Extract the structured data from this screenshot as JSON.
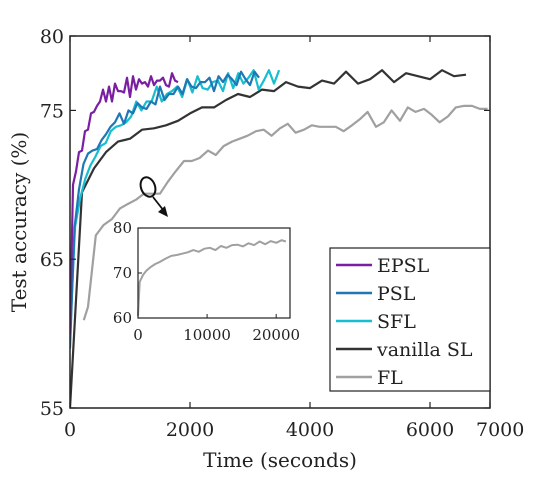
{
  "chart_data": {
    "type": "line",
    "xlabel": "Time (seconds)",
    "ylabel": "Test accuracy (%)",
    "xlim": [
      0,
      7000
    ],
    "ylim": [
      55,
      80
    ],
    "xticks": [
      {
        "value": 0,
        "label": "0"
      },
      {
        "value": 2000,
        "label": "2000"
      },
      {
        "value": 4000,
        "label": "4000"
      },
      {
        "value": 6000,
        "label": "6000"
      },
      {
        "value": 7000,
        "label": "7000"
      }
    ],
    "yticks": [
      {
        "value": 55,
        "label": "55"
      },
      {
        "value": 65,
        "label": "65"
      },
      {
        "value": 75,
        "label": "75"
      },
      {
        "value": 80,
        "label": "80"
      }
    ],
    "grid": false,
    "legend_position": "bottom-right",
    "series": [
      {
        "name": "EPSL",
        "color": "#7b1fa2",
        "x": [
          0,
          50,
          100,
          150,
          200,
          250,
          300,
          350,
          400,
          450,
          500,
          550,
          600,
          650,
          700,
          750,
          800,
          850,
          900,
          950,
          1000,
          1050,
          1100,
          1150,
          1200,
          1250,
          1300,
          1350,
          1400,
          1450,
          1500,
          1550,
          1600,
          1650,
          1700,
          1750,
          1800
        ],
        "y": [
          60,
          70.0,
          70.9,
          72.2,
          72.3,
          73.6,
          73.7,
          74.8,
          74.9,
          75.3,
          75.6,
          76.4,
          75.6,
          76.6,
          75.6,
          76.8,
          76.3,
          76.3,
          76.2,
          77.2,
          75.9,
          77.3,
          76.4,
          77.1,
          76.8,
          76.9,
          76.6,
          77.3,
          76.7,
          77.0,
          77.0,
          77.2,
          76.7,
          76.6,
          77.5,
          77.0,
          76.9
        ]
      },
      {
        "name": "PSL",
        "color": "#1f77b4",
        "x": [
          0,
          75,
          150,
          225,
          300,
          375,
          450,
          525,
          600,
          675,
          750,
          825,
          900,
          975,
          1050,
          1125,
          1200,
          1275,
          1350,
          1425,
          1500,
          1575,
          1650,
          1725,
          1800,
          1875,
          1950,
          2025,
          2100,
          2175,
          2250,
          2325,
          2400,
          2475,
          2550,
          2625,
          2700,
          2775,
          2850,
          2925,
          3000,
          3075,
          3150
        ],
        "y": [
          59,
          67.1,
          69.7,
          71.4,
          72.1,
          72.3,
          72.4,
          73.0,
          73.4,
          73.9,
          74.2,
          74.8,
          74.1,
          75.0,
          74.8,
          75.5,
          75.2,
          75.1,
          75.6,
          75.4,
          76.6,
          75.7,
          76.1,
          76.1,
          76.6,
          76.1,
          77.1,
          76.6,
          76.5,
          76.9,
          76.9,
          77.2,
          76.3,
          77.3,
          76.9,
          77.4,
          77.1,
          76.7,
          77.6,
          77.1,
          76.7,
          77.6,
          77.2
        ]
      },
      {
        "name": "SFL",
        "color": "#17becf",
        "x": [
          0,
          85,
          170,
          255,
          340,
          425,
          510,
          595,
          680,
          765,
          850,
          935,
          1020,
          1105,
          1190,
          1275,
          1360,
          1445,
          1530,
          1615,
          1700,
          1785,
          1870,
          1955,
          2040,
          2125,
          2210,
          2295,
          2380,
          2465,
          2550,
          2635,
          2720,
          2805,
          2890,
          2975,
          3060,
          3145,
          3230,
          3315,
          3400,
          3485
        ],
        "y": [
          60,
          67.2,
          69.1,
          70.4,
          71.3,
          71.9,
          72.6,
          72.8,
          73.6,
          73.9,
          74.0,
          74.2,
          74.6,
          75.6,
          75.0,
          75.6,
          75.6,
          76.6,
          75.6,
          76.1,
          76.3,
          76.6,
          75.9,
          77.1,
          76.2,
          77.3,
          76.5,
          76.4,
          76.9,
          77.0,
          76.3,
          77.5,
          76.5,
          77.5,
          76.8,
          77.2,
          77.7,
          76.4,
          77.0,
          77.7,
          76.8,
          77.7
        ]
      },
      {
        "name": "vanilla SL",
        "color": "#333333",
        "x": [
          0,
          200,
          400,
          600,
          800,
          1000,
          1200,
          1400,
          1600,
          1800,
          2000,
          2200,
          2400,
          2600,
          2800,
          3000,
          3200,
          3400,
          3600,
          3800,
          4000,
          4200,
          4400,
          4600,
          4800,
          5000,
          5200,
          5400,
          5600,
          5800,
          6000,
          6200,
          6400,
          6600
        ],
        "y": [
          55,
          69.5,
          71.1,
          72.2,
          72.9,
          73.1,
          73.7,
          73.8,
          74.0,
          74.3,
          74.8,
          75.2,
          75.2,
          75.7,
          76.1,
          75.9,
          76.4,
          76.3,
          76.9,
          76.6,
          76.5,
          77.0,
          76.8,
          77.6,
          76.8,
          77.1,
          77.7,
          76.9,
          77.5,
          77.3,
          77.1,
          77.7,
          77.3,
          77.4
        ]
      },
      {
        "name": "FL",
        "color": "#a0a0a0",
        "x": [
          230,
          300,
          430,
          560,
          700,
          830,
          960,
          1100,
          1230,
          1360,
          1500,
          1630,
          1760,
          1900,
          2030,
          2160,
          2300,
          2430,
          2560,
          2700,
          2830,
          2960,
          3100,
          3230,
          3360,
          3500,
          3630,
          3760,
          3900,
          4030,
          4160,
          4300,
          4430,
          4560,
          4700,
          4830,
          4960,
          5100,
          5230,
          5360,
          5500,
          5630,
          5760,
          5900,
          6030,
          6160,
          6300,
          6430,
          6560,
          6700,
          6830,
          6960
        ],
        "y": [
          60.9,
          61.8,
          66.6,
          67.3,
          67.7,
          68.4,
          68.7,
          69.0,
          69.4,
          69.4,
          69.4,
          70.2,
          70.9,
          71.6,
          71.6,
          71.8,
          72.3,
          72.0,
          72.6,
          72.9,
          73.1,
          73.3,
          73.6,
          73.7,
          73.3,
          73.8,
          74.1,
          73.5,
          73.7,
          74.0,
          73.9,
          73.9,
          73.9,
          73.6,
          74.0,
          74.4,
          74.9,
          73.9,
          74.2,
          75.0,
          74.3,
          75.2,
          74.9,
          75.1,
          74.7,
          74.2,
          74.6,
          75.2,
          75.3,
          75.3,
          75.1,
          75.1
        ]
      }
    ],
    "inset": {
      "xlim": [
        0,
        22000
      ],
      "ylim": [
        60,
        80
      ],
      "xticks": [
        {
          "value": 0,
          "label": "0"
        },
        {
          "value": 10000,
          "label": "10000"
        },
        {
          "value": 20000,
          "label": "20000"
        }
      ],
      "yticks": [
        {
          "value": 60,
          "label": "60"
        },
        {
          "value": 70,
          "label": "70"
        },
        {
          "value": 80,
          "label": "80"
        }
      ],
      "series": {
        "color": "#a0a0a0",
        "x": [
          0,
          250,
          700,
          1200,
          1800,
          2500,
          3200,
          4000,
          4800,
          5600,
          6400,
          7200,
          8000,
          8800,
          9600,
          10400,
          11200,
          12000,
          12800,
          13600,
          14400,
          15200,
          16000,
          16800,
          17600,
          18400,
          19200,
          20000,
          20800,
          21400
        ],
        "y": [
          60.5,
          68.0,
          69.5,
          70.5,
          71.3,
          72.0,
          72.5,
          73.2,
          73.8,
          74.0,
          74.3,
          74.6,
          75.1,
          74.7,
          75.4,
          75.6,
          75.1,
          76.0,
          75.6,
          76.2,
          76.3,
          75.9,
          76.6,
          76.2,
          77.0,
          76.4,
          77.1,
          76.7,
          77.3,
          77.0
        ]
      }
    }
  }
}
